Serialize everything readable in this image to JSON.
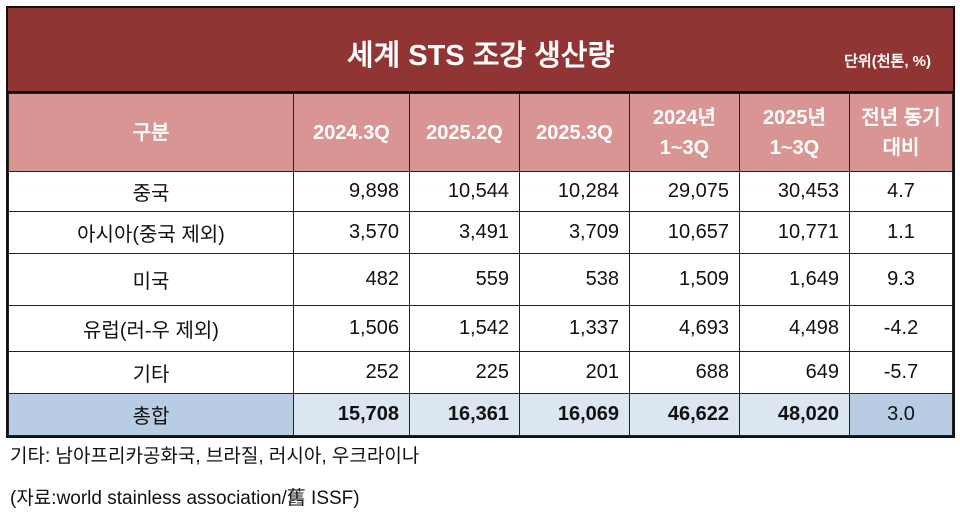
{
  "title": "세계 STS 조강 생산량",
  "unit": "단위(천톤, %)",
  "headers": [
    "구분",
    "2024.3Q",
    "2025.2Q",
    "2025.3Q",
    "2024년\n1~3Q",
    "2025년\n1~3Q",
    "전년 동기\n대비"
  ],
  "rows": [
    [
      "중국",
      "9,898",
      "10,544",
      "10,284",
      "29,075",
      "30,453",
      "4.7"
    ],
    [
      "아시아(중국 제외)",
      "3,570",
      "3,491",
      "3,709",
      "10,657",
      "10,771",
      "1.1"
    ],
    [
      "미국",
      "482",
      "559",
      "538",
      "1,509",
      "1,649",
      "9.3"
    ],
    [
      "유럽(러-우 제외)",
      "1,506",
      "1,542",
      "1,337",
      "4,693",
      "4,498",
      "-4.2"
    ],
    [
      "기타",
      "252",
      "225",
      "201",
      "688",
      "649",
      "-5.7"
    ],
    [
      "총합",
      "15,708",
      "16,361",
      "16,069",
      "46,622",
      "48,020",
      "3.0"
    ]
  ],
  "notes": [
    "기타: 남아프리카공화국, 브라질, 러시아, 우크라이나",
    "(자료:world stainless association/舊 ISSF)"
  ]
}
